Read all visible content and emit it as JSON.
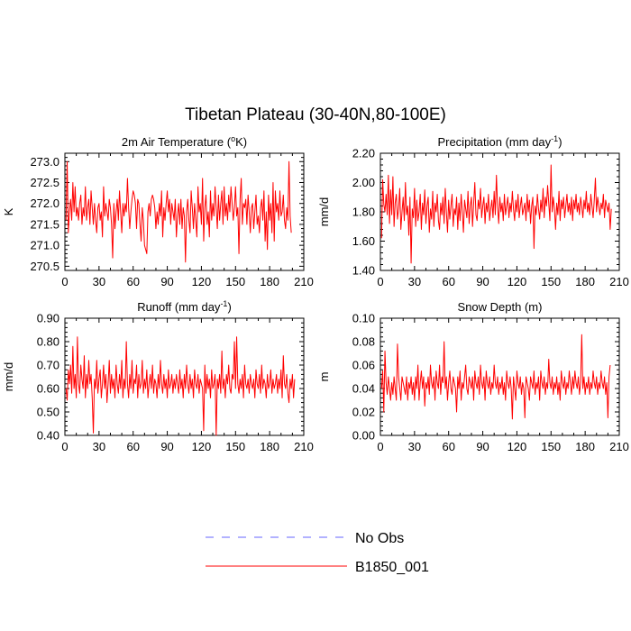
{
  "figure": {
    "title": "Tibetan Plateau (30-40N,80-100E)",
    "legend": [
      {
        "label": "No Obs",
        "color": "#6666ff",
        "style": "dashed"
      },
      {
        "label": "B1850_001",
        "color": "#ff0000",
        "style": "solid"
      }
    ]
  },
  "chart_data": [
    {
      "type": "line",
      "title": "2m Air Temperature (°K)",
      "title_parts": {
        "pre": "2m Air Temperature (",
        "sup": "o",
        "post": "K)"
      },
      "xlabel": "",
      "ylabel": "K",
      "xlim": [
        0,
        210
      ],
      "ylim": [
        270.4,
        273.2
      ],
      "xticks": [
        0,
        30,
        60,
        90,
        120,
        150,
        180,
        210
      ],
      "yticks": [
        270.5,
        271.0,
        271.5,
        272.0,
        272.5,
        273.0
      ],
      "ytick_labels": [
        "270.5",
        "271.0",
        "271.5",
        "272.0",
        "272.5",
        "273.0"
      ],
      "series": [
        {
          "name": "B1850_001",
          "color": "#ff0000",
          "values": [
            271.6,
            273.0,
            271.3,
            271.8,
            272.1,
            271.6,
            272.5,
            271.8,
            272.4,
            271.7,
            271.9,
            271.6,
            272.0,
            272.2,
            271.5,
            271.9,
            271.7,
            272.4,
            271.6,
            271.9,
            272.1,
            271.5,
            272.3,
            271.9,
            271.5,
            272.0,
            271.6,
            271.3,
            271.9,
            272.0,
            271.6,
            271.8,
            271.2,
            272.4,
            271.7,
            272.0,
            271.8,
            271.6,
            272.1,
            271.9,
            271.5,
            270.7,
            272.0,
            271.4,
            271.8,
            272.1,
            271.6,
            272.3,
            271.8,
            271.3,
            272.0,
            271.7,
            272.0,
            271.8,
            272.6,
            271.9,
            271.4,
            271.8,
            272.1,
            272.3,
            272.2,
            272.0,
            271.4,
            272.1,
            272.0,
            271.5,
            271.1,
            271.9,
            271.6,
            271.0,
            270.9,
            270.8,
            271.8,
            272.0,
            271.7,
            272.1,
            272.2,
            272.1,
            271.9,
            271.4,
            271.8,
            271.5,
            272.0,
            271.7,
            272.3,
            271.2,
            271.9,
            271.6,
            272.0,
            272.3,
            271.8,
            272.1,
            271.5,
            272.0,
            271.8,
            271.6,
            272.1,
            271.2,
            271.7,
            272.0,
            271.5,
            272.1,
            271.4,
            271.9,
            271.7,
            270.6,
            271.8,
            272.1,
            271.6,
            271.3,
            272.3,
            271.9,
            271.4,
            272.0,
            271.6,
            271.2,
            272.4,
            271.8,
            272.0,
            271.5,
            272.6,
            271.1,
            271.9,
            272.2,
            271.5,
            271.8,
            271.2,
            272.3,
            271.6,
            272.0,
            271.7,
            272.4,
            271.9,
            271.4,
            272.2,
            271.6,
            272.0,
            272.3,
            271.5,
            272.4,
            271.7,
            272.0,
            271.6,
            272.2,
            271.8,
            272.4,
            272.0,
            271.6,
            271.9,
            272.4,
            271.7,
            271.9,
            270.8,
            272.1,
            272.6,
            271.5,
            272.0,
            271.9,
            272.1,
            271.5,
            272.2,
            271.8,
            271.3,
            271.9,
            272.0,
            271.4,
            271.8,
            272.2,
            271.5,
            271.7,
            271.3,
            271.9,
            272.1,
            271.6,
            272.3,
            271.1,
            271.8,
            270.9,
            272.2,
            271.6,
            272.0,
            271.3,
            272.5,
            271.1,
            272.3,
            271.8,
            272.0,
            271.6,
            272.3,
            271.7,
            271.8,
            272.2,
            271.6,
            271.4,
            271.9,
            271.6,
            273.0,
            271.7,
            271.3
          ]
        }
      ]
    },
    {
      "type": "line",
      "title": "Precipitation (mm day-1)",
      "title_parts": {
        "pre": "Precipitation (mm day",
        "sup": "-1",
        "post": ")"
      },
      "xlabel": "",
      "ylabel": "mm/d",
      "xlim": [
        0,
        210
      ],
      "ylim": [
        1.4,
        2.2
      ],
      "xticks": [
        0,
        30,
        60,
        90,
        120,
        150,
        180,
        210
      ],
      "yticks": [
        1.4,
        1.6,
        1.8,
        2.0,
        2.2
      ],
      "ytick_labels": [
        "1.40",
        "1.60",
        "1.80",
        "2.00",
        "2.20"
      ],
      "series": [
        {
          "name": "B1850_001",
          "color": "#ff0000",
          "values": [
            1.62,
            2.02,
            1.85,
            1.8,
            1.92,
            1.78,
            2.05,
            1.72,
            1.95,
            1.78,
            2.04,
            1.7,
            1.86,
            1.92,
            1.75,
            1.82,
            1.96,
            1.68,
            1.8,
            1.9,
            1.74,
            2.0,
            1.78,
            1.84,
            1.64,
            1.9,
            1.45,
            1.82,
            1.76,
            1.96,
            1.7,
            1.88,
            1.74,
            1.8,
            1.92,
            1.68,
            1.86,
            1.78,
            1.95,
            1.72,
            1.84,
            1.9,
            1.66,
            1.82,
            1.75,
            1.94,
            1.7,
            1.86,
            1.8,
            1.92,
            1.74,
            1.68,
            1.86,
            1.78,
            1.9,
            1.72,
            1.96,
            1.8,
            1.66,
            1.88,
            1.75,
            1.84,
            1.92,
            1.7,
            1.82,
            1.78,
            1.9,
            1.68,
            1.86,
            1.74,
            1.92,
            1.8,
            1.66,
            1.88,
            1.82,
            1.76,
            1.94,
            1.72,
            1.84,
            1.9,
            1.7,
            1.86,
            2.0,
            1.78,
            1.74,
            1.88,
            1.82,
            1.96,
            1.76,
            1.84,
            1.9,
            1.72,
            1.86,
            1.8,
            1.92,
            1.74,
            1.82,
            1.88,
            1.76,
            1.94,
            1.78,
            2.05,
            1.84,
            1.72,
            1.9,
            1.8,
            1.86,
            1.74,
            1.92,
            1.78,
            1.84,
            1.9,
            1.76,
            1.86,
            1.8,
            1.94,
            1.82,
            1.74,
            1.88,
            1.8,
            1.92,
            1.76,
            1.84,
            1.9,
            1.78,
            1.82,
            1.86,
            1.74,
            1.92,
            1.8,
            1.88,
            1.72,
            1.84,
            1.9,
            1.55,
            1.84,
            1.78,
            1.92,
            1.82,
            1.75,
            1.88,
            1.8,
            1.96,
            1.76,
            1.9,
            1.84,
            1.98,
            1.86,
            1.74,
            2.12,
            1.8,
            1.9,
            1.82,
            1.68,
            1.86,
            1.78,
            1.94,
            1.74,
            1.88,
            1.82,
            1.9,
            1.76,
            1.84,
            1.92,
            1.8,
            1.86,
            1.78,
            1.9,
            1.74,
            1.88,
            1.82,
            1.92,
            1.8,
            1.86,
            1.78,
            1.9,
            1.84,
            1.76,
            1.88,
            1.82,
            1.94,
            1.8,
            1.86,
            1.78,
            1.92,
            1.84,
            1.76,
            1.88,
            2.03,
            1.8,
            1.9,
            1.84,
            1.78,
            1.86,
            1.82,
            1.92,
            1.76,
            1.88,
            1.84,
            1.8,
            1.86,
            1.68,
            1.82
          ]
        }
      ]
    },
    {
      "type": "line",
      "title": "Runoff (mm day-1)",
      "title_parts": {
        "pre": "Runoff (mm day",
        "sup": "-1",
        "post": ")"
      },
      "xlabel": "",
      "ylabel": "mm/d",
      "xlim": [
        0,
        210
      ],
      "ylim": [
        0.4,
        0.9
      ],
      "xticks": [
        0,
        30,
        60,
        90,
        120,
        150,
        180,
        210
      ],
      "yticks": [
        0.4,
        0.5,
        0.6,
        0.7,
        0.8,
        0.9
      ],
      "ytick_labels": [
        "0.40",
        "0.50",
        "0.60",
        "0.70",
        "0.80",
        "0.90"
      ],
      "series": [
        {
          "name": "B1850_001",
          "color": "#ff0000",
          "values": [
            0.6,
            0.55,
            0.68,
            0.62,
            0.7,
            0.58,
            0.78,
            0.6,
            0.66,
            0.56,
            0.82,
            0.62,
            0.58,
            0.7,
            0.64,
            0.6,
            0.74,
            0.56,
            0.66,
            0.6,
            0.72,
            0.62,
            0.66,
            0.56,
            0.41,
            0.64,
            0.6,
            0.72,
            0.58,
            0.64,
            0.68,
            0.56,
            0.62,
            0.7,
            0.6,
            0.66,
            0.54,
            0.62,
            0.72,
            0.58,
            0.66,
            0.6,
            0.64,
            0.56,
            0.7,
            0.62,
            0.58,
            0.66,
            0.6,
            0.72,
            0.56,
            0.64,
            0.6,
            0.8,
            0.62,
            0.56,
            0.66,
            0.6,
            0.72,
            0.58,
            0.64,
            0.62,
            0.7,
            0.56,
            0.66,
            0.6,
            0.62,
            0.72,
            0.58,
            0.64,
            0.6,
            0.68,
            0.56,
            0.62,
            0.66,
            0.6,
            0.7,
            0.58,
            0.64,
            0.62,
            0.56,
            0.66,
            0.6,
            0.72,
            0.62,
            0.58,
            0.66,
            0.6,
            0.64,
            0.56,
            0.68,
            0.6,
            0.62,
            0.66,
            0.58,
            0.64,
            0.6,
            0.66,
            0.62,
            0.58,
            0.68,
            0.6,
            0.64,
            0.56,
            0.66,
            0.6,
            0.7,
            0.62,
            0.58,
            0.66,
            0.6,
            0.64,
            0.56,
            0.68,
            0.62,
            0.6,
            0.66,
            0.58,
            0.64,
            0.62,
            0.6,
            0.42,
            0.7,
            0.58,
            0.66,
            0.6,
            0.64,
            0.56,
            0.68,
            0.6,
            0.62,
            0.66,
            0.4,
            0.64,
            0.6,
            0.66,
            0.58,
            0.76,
            0.6,
            0.64,
            0.56,
            0.66,
            0.62,
            0.7,
            0.6,
            0.58,
            0.66,
            0.64,
            0.8,
            0.6,
            0.82,
            0.62,
            0.58,
            0.64,
            0.6,
            0.66,
            0.56,
            0.7,
            0.62,
            0.6,
            0.64,
            0.58,
            0.66,
            0.62,
            0.6,
            0.64,
            0.56,
            0.68,
            0.62,
            0.6,
            0.66,
            0.58,
            0.7,
            0.6,
            0.64,
            0.62,
            0.56,
            0.66,
            0.6,
            0.62,
            0.68,
            0.58,
            0.64,
            0.6,
            0.62,
            0.66,
            0.58,
            0.64,
            0.6,
            0.68,
            0.56,
            0.74,
            0.62,
            0.6,
            0.66,
            0.58,
            0.54,
            0.64,
            0.6,
            0.66,
            0.56,
            0.64
          ]
        }
      ]
    },
    {
      "type": "line",
      "title": "Snow Depth (m)",
      "title_parts": {
        "pre": "Snow Depth (m)",
        "sup": "",
        "post": ""
      },
      "xlabel": "",
      "ylabel": "m",
      "xlim": [
        0,
        210
      ],
      "ylim": [
        0.0,
        0.1
      ],
      "xticks": [
        0,
        30,
        60,
        90,
        120,
        150,
        180,
        210
      ],
      "yticks": [
        0.0,
        0.02,
        0.04,
        0.06,
        0.08,
        0.1
      ],
      "ytick_labels": [
        "0.00",
        "0.02",
        "0.04",
        "0.06",
        "0.08",
        "0.10"
      ],
      "series": [
        {
          "name": "B1850_001",
          "color": "#ff0000",
          "values": [
            0.04,
            0.055,
            0.02,
            0.072,
            0.045,
            0.035,
            0.05,
            0.04,
            0.03,
            0.045,
            0.035,
            0.05,
            0.04,
            0.03,
            0.078,
            0.05,
            0.04,
            0.03,
            0.05,
            0.045,
            0.04,
            0.035,
            0.05,
            0.03,
            0.045,
            0.04,
            0.05,
            0.035,
            0.045,
            0.03,
            0.05,
            0.04,
            0.06,
            0.03,
            0.045,
            0.055,
            0.04,
            0.05,
            0.025,
            0.045,
            0.04,
            0.05,
            0.035,
            0.06,
            0.045,
            0.04,
            0.05,
            0.03,
            0.055,
            0.045,
            0.04,
            0.06,
            0.035,
            0.05,
            0.045,
            0.08,
            0.04,
            0.05,
            0.03,
            0.045,
            0.055,
            0.04,
            0.035,
            0.05,
            0.045,
            0.04,
            0.02,
            0.05,
            0.04,
            0.055,
            0.03,
            0.045,
            0.04,
            0.05,
            0.06,
            0.04,
            0.035,
            0.05,
            0.045,
            0.04,
            0.05,
            0.03,
            0.055,
            0.045,
            0.04,
            0.05,
            0.035,
            0.06,
            0.045,
            0.04,
            0.05,
            0.03,
            0.055,
            0.045,
            0.04,
            0.05,
            0.035,
            0.045,
            0.04,
            0.06,
            0.045,
            0.04,
            0.05,
            0.035,
            0.045,
            0.04,
            0.05,
            0.035,
            0.045,
            0.03,
            0.055,
            0.045,
            0.04,
            0.05,
            0.04,
            0.014,
            0.05,
            0.04,
            0.03,
            0.055,
            0.045,
            0.04,
            0.05,
            0.035,
            0.045,
            0.04,
            0.015,
            0.05,
            0.045,
            0.04,
            0.03,
            0.05,
            0.045,
            0.04,
            0.055,
            0.035,
            0.045,
            0.04,
            0.05,
            0.03,
            0.055,
            0.045,
            0.04,
            0.05,
            0.035,
            0.045,
            0.04,
            0.065,
            0.045,
            0.04,
            0.05,
            0.035,
            0.045,
            0.04,
            0.05,
            0.035,
            0.045,
            0.03,
            0.055,
            0.045,
            0.04,
            0.05,
            0.035,
            0.045,
            0.04,
            0.055,
            0.045,
            0.035,
            0.05,
            0.04,
            0.055,
            0.045,
            0.04,
            0.05,
            0.035,
            0.045,
            0.086,
            0.04,
            0.05,
            0.035,
            0.045,
            0.04,
            0.05,
            0.035,
            0.045,
            0.04,
            0.055,
            0.045,
            0.04,
            0.05,
            0.035,
            0.045,
            0.04,
            0.055,
            0.045,
            0.04,
            0.05,
            0.035,
            0.045,
            0.015,
            0.05,
            0.06
          ]
        }
      ]
    }
  ]
}
